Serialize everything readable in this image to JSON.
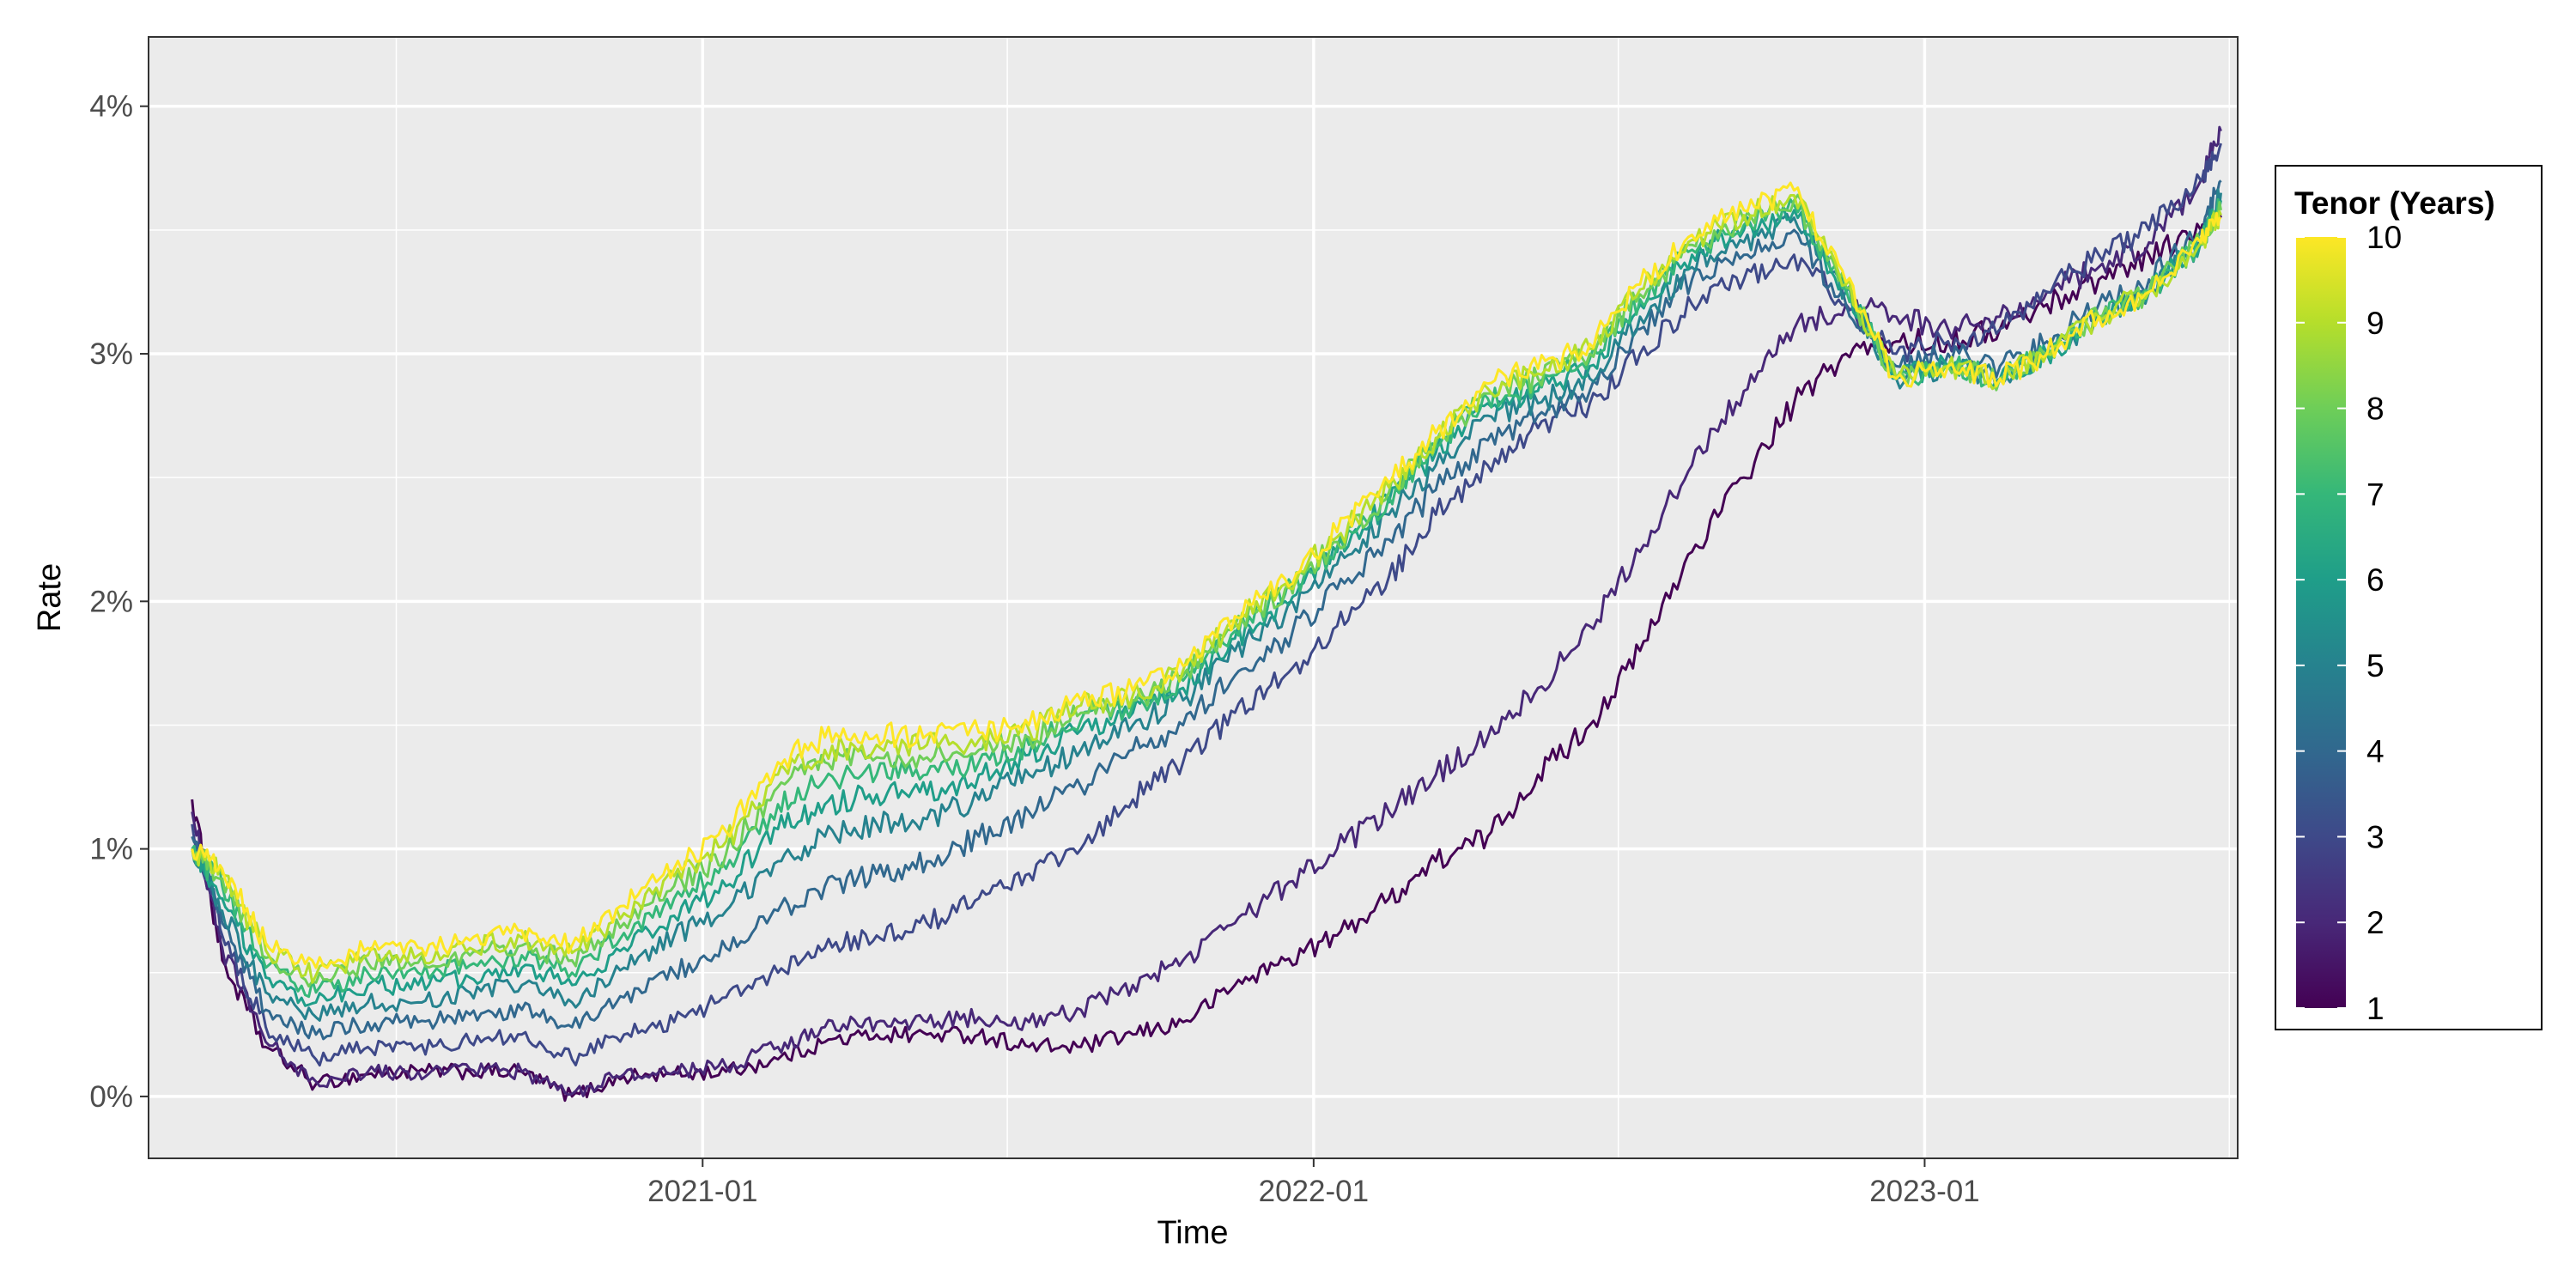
{
  "chart_data": {
    "type": "line",
    "title": "",
    "xlabel": "Time",
    "ylabel": "Rate",
    "x_ticks": [
      "2021-01",
      "2022-01",
      "2023-01"
    ],
    "y_ticks": [
      "0%",
      "1%",
      "2%",
      "3%",
      "4%"
    ],
    "ylim": [
      -0.25,
      4.28
    ],
    "xlim": [
      "2020-02-05",
      "2023-07-07"
    ],
    "grid": true,
    "legend": {
      "title": "Tenor (Years)",
      "type": "colorbar",
      "position": "right",
      "ticks": [
        "1",
        "2",
        "3",
        "4",
        "5",
        "6",
        "7",
        "8",
        "9",
        "10"
      ],
      "colormap": "viridis",
      "range": [
        1,
        10
      ]
    },
    "colors": [
      "#440154",
      "#482878",
      "#3e4989",
      "#31688e",
      "#26828e",
      "#1f9e89",
      "#35b779",
      "#6ece58",
      "#b5de2b",
      "#fde725"
    ],
    "dates": [
      "2020-03-02",
      "2020-03-20",
      "2020-04-15",
      "2020-05-15",
      "2020-06-15",
      "2020-07-15",
      "2020-08-15",
      "2020-09-15",
      "2020-10-15",
      "2020-11-15",
      "2020-12-15",
      "2021-01-15",
      "2021-02-15",
      "2021-03-15",
      "2021-04-15",
      "2021-05-15",
      "2021-06-15",
      "2021-07-15",
      "2021-08-15",
      "2021-09-15",
      "2021-10-15",
      "2021-11-15",
      "2021-12-15",
      "2022-01-15",
      "2022-02-15",
      "2022-03-15",
      "2022-04-15",
      "2022-05-15",
      "2022-06-15",
      "2022-07-15",
      "2022-08-15",
      "2022-09-15",
      "2022-10-15",
      "2022-11-15",
      "2022-12-15",
      "2023-01-15",
      "2023-02-15",
      "2023-03-15",
      "2023-04-15",
      "2023-05-15",
      "2023-06-15",
      "2023-06-27"
    ],
    "series": [
      {
        "tenor": 1,
        "values": [
          1.2,
          0.55,
          0.2,
          0.05,
          0.09,
          0.1,
          0.1,
          0.1,
          0.0,
          0.08,
          0.09,
          0.1,
          0.15,
          0.22,
          0.25,
          0.25,
          0.25,
          0.2,
          0.2,
          0.25,
          0.3,
          0.45,
          0.55,
          0.65,
          0.8,
          0.95,
          1.05,
          1.3,
          1.5,
          1.8,
          2.2,
          2.5,
          2.8,
          3.0,
          3.05,
          3.05,
          3.1,
          3.2,
          3.3,
          3.4,
          3.5,
          3.55
        ]
      },
      {
        "tenor": 2,
        "values": [
          1.15,
          0.6,
          0.22,
          0.06,
          0.1,
          0.1,
          0.11,
          0.1,
          0.01,
          0.09,
          0.1,
          0.12,
          0.2,
          0.28,
          0.3,
          0.3,
          0.32,
          0.3,
          0.35,
          0.45,
          0.55,
          0.7,
          0.85,
          1.0,
          1.15,
          1.3,
          1.45,
          1.65,
          1.9,
          2.2,
          2.55,
          2.85,
          3.1,
          3.2,
          3.15,
          3.1,
          3.15,
          3.25,
          3.35,
          3.45,
          3.7,
          3.9
        ]
      },
      {
        "tenor": 3,
        "values": [
          1.1,
          0.65,
          0.28,
          0.15,
          0.2,
          0.2,
          0.22,
          0.25,
          0.15,
          0.25,
          0.3,
          0.4,
          0.5,
          0.6,
          0.65,
          0.7,
          0.8,
          0.9,
          1.0,
          1.2,
          1.35,
          1.55,
          1.7,
          1.9,
          2.1,
          2.35,
          2.55,
          2.7,
          2.8,
          3.0,
          3.2,
          3.3,
          3.4,
          3.2,
          3.0,
          3.05,
          3.1,
          3.25,
          3.4,
          3.5,
          3.7,
          3.85
        ]
      },
      {
        "tenor": 4,
        "values": [
          1.05,
          0.7,
          0.35,
          0.25,
          0.3,
          0.3,
          0.33,
          0.35,
          0.28,
          0.4,
          0.5,
          0.6,
          0.75,
          0.85,
          0.9,
          0.95,
          1.05,
          1.15,
          1.25,
          1.4,
          1.5,
          1.7,
          1.85,
          2.05,
          2.25,
          2.45,
          2.65,
          2.75,
          2.85,
          3.1,
          3.3,
          3.4,
          3.5,
          3.2,
          2.95,
          3.0,
          2.95,
          3.05,
          3.2,
          3.3,
          3.5,
          3.7
        ]
      },
      {
        "tenor": 5,
        "values": [
          1.0,
          0.75,
          0.42,
          0.32,
          0.38,
          0.38,
          0.42,
          0.45,
          0.38,
          0.52,
          0.65,
          0.75,
          0.95,
          1.05,
          1.1,
          1.12,
          1.2,
          1.3,
          1.4,
          1.5,
          1.6,
          1.8,
          1.95,
          2.15,
          2.35,
          2.55,
          2.75,
          2.8,
          2.9,
          3.15,
          3.35,
          3.45,
          3.55,
          3.25,
          2.9,
          2.95,
          2.9,
          3.0,
          3.15,
          3.25,
          3.45,
          3.65
        ]
      },
      {
        "tenor": 6,
        "values": [
          1.0,
          0.8,
          0.48,
          0.38,
          0.45,
          0.45,
          0.48,
          0.52,
          0.45,
          0.6,
          0.73,
          0.85,
          1.08,
          1.18,
          1.22,
          1.22,
          1.3,
          1.38,
          1.48,
          1.55,
          1.65,
          1.85,
          2.0,
          2.2,
          2.4,
          2.6,
          2.8,
          2.85,
          2.95,
          3.2,
          3.4,
          3.5,
          3.58,
          3.25,
          2.9,
          2.95,
          2.9,
          3.0,
          3.15,
          3.25,
          3.45,
          3.62
        ]
      },
      {
        "tenor": 7,
        "values": [
          1.0,
          0.85,
          0.52,
          0.42,
          0.5,
          0.5,
          0.53,
          0.57,
          0.5,
          0.66,
          0.8,
          0.92,
          1.18,
          1.28,
          1.3,
          1.3,
          1.35,
          1.42,
          1.52,
          1.58,
          1.68,
          1.88,
          2.03,
          2.22,
          2.42,
          2.62,
          2.82,
          2.88,
          2.98,
          3.22,
          3.42,
          3.52,
          3.6,
          3.26,
          2.9,
          2.95,
          2.9,
          3.0,
          3.15,
          3.25,
          3.45,
          3.6
        ]
      },
      {
        "tenor": 8,
        "values": [
          1.0,
          0.88,
          0.56,
          0.46,
          0.54,
          0.54,
          0.57,
          0.61,
          0.55,
          0.7,
          0.85,
          0.98,
          1.25,
          1.35,
          1.37,
          1.37,
          1.4,
          1.45,
          1.55,
          1.6,
          1.7,
          1.9,
          2.05,
          2.24,
          2.44,
          2.64,
          2.84,
          2.9,
          3.0,
          3.24,
          3.44,
          3.54,
          3.62,
          3.27,
          2.9,
          2.95,
          2.9,
          3.0,
          3.15,
          3.25,
          3.45,
          3.58
        ]
      },
      {
        "tenor": 9,
        "values": [
          1.0,
          0.9,
          0.59,
          0.49,
          0.57,
          0.57,
          0.6,
          0.64,
          0.58,
          0.74,
          0.89,
          1.03,
          1.3,
          1.4,
          1.42,
          1.42,
          1.44,
          1.48,
          1.58,
          1.62,
          1.72,
          1.92,
          2.07,
          2.26,
          2.46,
          2.66,
          2.86,
          2.92,
          3.02,
          3.26,
          3.46,
          3.56,
          3.64,
          3.28,
          2.9,
          2.95,
          2.9,
          3.0,
          3.15,
          3.25,
          3.45,
          3.56
        ]
      },
      {
        "tenor": 10,
        "values": [
          1.0,
          0.92,
          0.62,
          0.52,
          0.6,
          0.6,
          0.63,
          0.67,
          0.61,
          0.77,
          0.92,
          1.07,
          1.35,
          1.45,
          1.46,
          1.46,
          1.47,
          1.5,
          1.6,
          1.64,
          1.74,
          1.94,
          2.09,
          2.28,
          2.48,
          2.68,
          2.88,
          2.94,
          3.04,
          3.28,
          3.48,
          3.58,
          3.66,
          3.29,
          2.9,
          2.95,
          2.9,
          3.0,
          3.15,
          3.25,
          3.45,
          3.55
        ]
      }
    ]
  }
}
